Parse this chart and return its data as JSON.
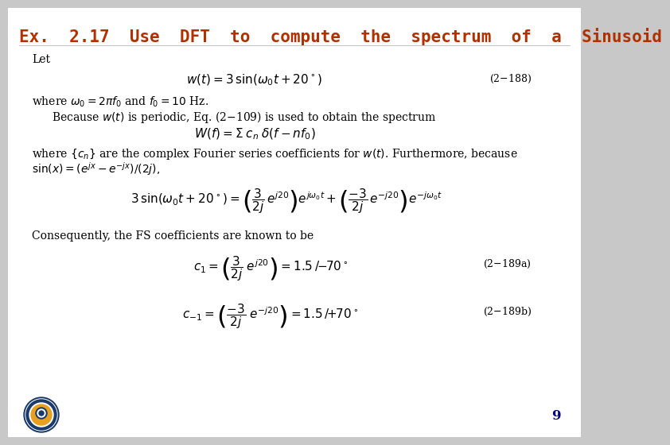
{
  "title": "Ex.  2.17  Use  DFT  to  compute  the  spectrum  of  a  Sinusoid",
  "title_color": "#b03000",
  "page_number": "9",
  "page_number_color": "#000080",
  "bg_color": "#ffffff",
  "outer_bg": "#c8c8c8"
}
